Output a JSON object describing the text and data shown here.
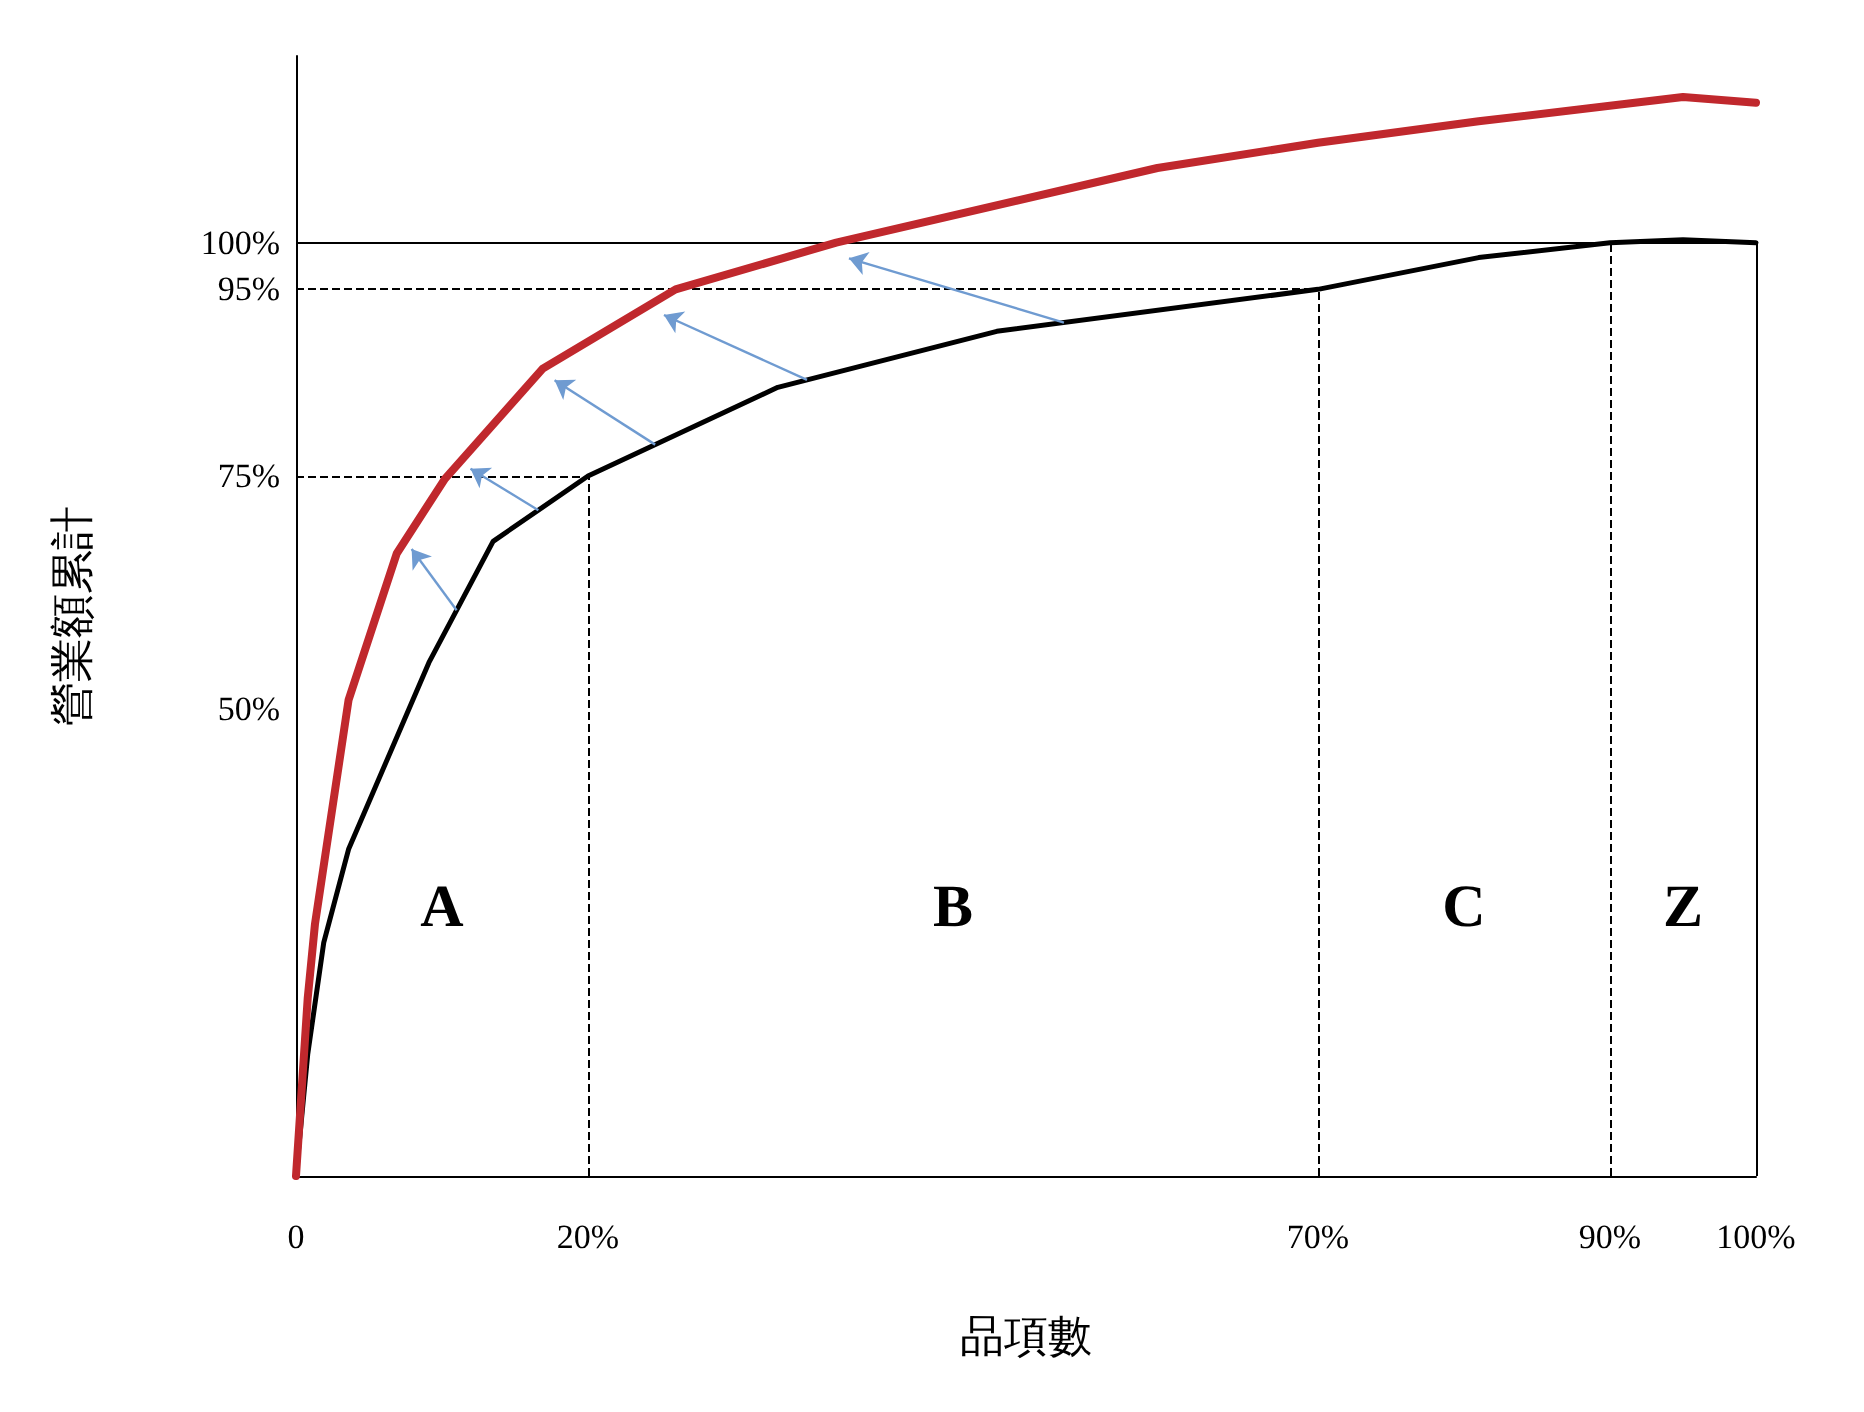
{
  "chart_data": {
    "type": "line",
    "xlabel": "品項數",
    "ylabel": "營業額累計",
    "xlim": [
      0,
      100
    ],
    "xticks": [
      {
        "value": 0,
        "label": "0"
      },
      {
        "value": 20,
        "label": "20%"
      },
      {
        "value": 70,
        "label": "70%"
      },
      {
        "value": 90,
        "label": "90%"
      },
      {
        "value": 100,
        "label": "100%"
      }
    ],
    "ylim": [
      0,
      120
    ],
    "yticks": [
      {
        "value": 0,
        "label": null
      },
      {
        "value": 50,
        "label": "50%"
      },
      {
        "value": 75,
        "label": "75%"
      },
      {
        "value": 95,
        "label": "95%"
      },
      {
        "value": 100,
        "label": "100%"
      }
    ],
    "grid": false,
    "marker": "none",
    "line_style": "solid",
    "series": [
      {
        "color": "#c0282d",
        "x": [
          0,
          0.8,
          1.3,
          3.6,
          6.9,
          10.2,
          16.9,
          26,
          37,
          59,
          70,
          81,
          95,
          100
        ],
        "values": [
          0,
          19,
          27,
          51,
          66.7,
          74.7,
          86.5,
          95,
          100,
          108,
          110.7,
          113,
          115.6,
          115
        ]
      },
      {
        "color": "#000000",
        "x": [
          0,
          0.8,
          1.9,
          3.6,
          9.1,
          13.5,
          20,
          33,
          48,
          70,
          81,
          90,
          95,
          100
        ],
        "values": [
          0,
          13,
          25,
          35,
          55,
          68,
          75,
          84.5,
          90.5,
          95,
          98.4,
          100,
          100.3,
          100
        ]
      }
    ],
    "ref_lines": [
      {
        "axis": "y",
        "value": 75,
        "line_style": "dashed"
      },
      {
        "axis": "y",
        "value": 95,
        "line_style": "dashed"
      },
      {
        "axis": "y",
        "value": 100,
        "line_style": "solid"
      },
      {
        "axis": "x",
        "value": 20,
        "line_style": "dashed"
      },
      {
        "axis": "x",
        "value": 70,
        "line_style": "dashed"
      },
      {
        "axis": "x",
        "value": 90,
        "line_style": "dashed"
      },
      {
        "axis": "x",
        "value": 100,
        "line_style": "solid"
      }
    ],
    "annotations": [
      "A",
      "B",
      "C",
      "Z"
    ]
  }
}
